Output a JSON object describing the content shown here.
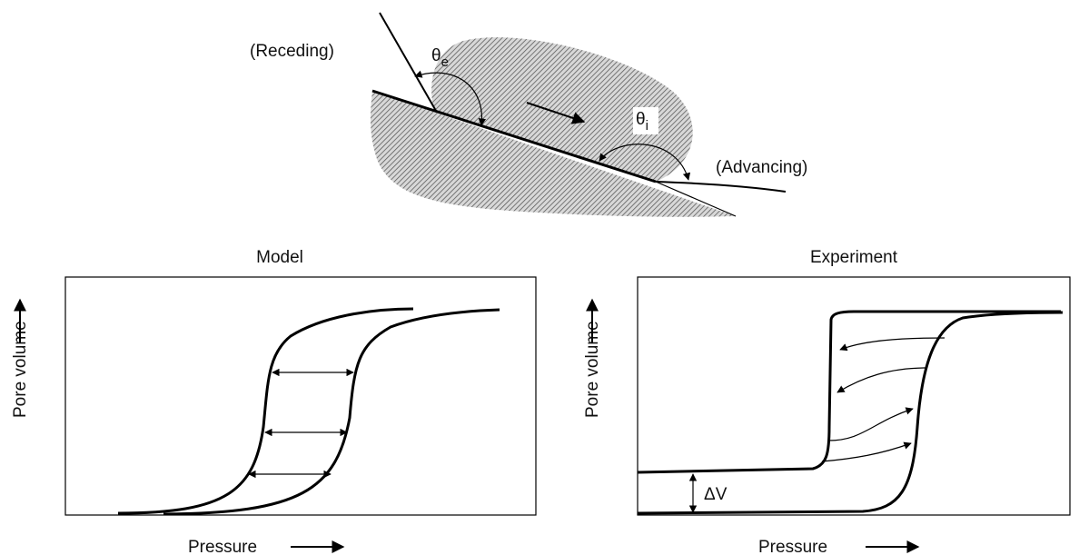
{
  "top_diagram": {
    "receding_label": "(Receding)",
    "theta_e": {
      "symbol": "θ",
      "subscript": "e"
    },
    "theta_i": {
      "symbol": "θ",
      "subscript": "i"
    },
    "advancing_label": "(Advancing)"
  },
  "panels": [
    {
      "title": "Model",
      "y_label": "Pore volume",
      "x_label": "Pressure"
    },
    {
      "title": "Experiment",
      "y_label": "Pore volume",
      "x_label": "Pressure",
      "annotation": "ΔV"
    }
  ]
}
